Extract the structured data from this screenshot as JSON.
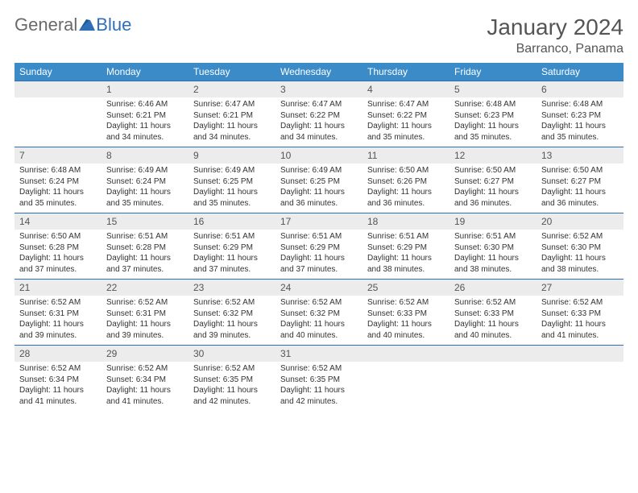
{
  "logo": {
    "text1": "General",
    "text2": "Blue"
  },
  "title": "January 2024",
  "location": "Barranco, Panama",
  "colors": {
    "header_bg": "#3b8bc9",
    "header_text": "#ffffff",
    "daynum_bg": "#ececec",
    "daynum_border": "#2e6fb7",
    "body_text": "#333333",
    "title_text": "#555555",
    "logo_gray": "#6a6a6a",
    "logo_blue": "#2e6fb7"
  },
  "weekdays": [
    "Sunday",
    "Monday",
    "Tuesday",
    "Wednesday",
    "Thursday",
    "Friday",
    "Saturday"
  ],
  "weeks": [
    [
      null,
      {
        "n": "1",
        "sr": "Sunrise: 6:46 AM",
        "ss": "Sunset: 6:21 PM",
        "d1": "Daylight: 11 hours",
        "d2": "and 34 minutes."
      },
      {
        "n": "2",
        "sr": "Sunrise: 6:47 AM",
        "ss": "Sunset: 6:21 PM",
        "d1": "Daylight: 11 hours",
        "d2": "and 34 minutes."
      },
      {
        "n": "3",
        "sr": "Sunrise: 6:47 AM",
        "ss": "Sunset: 6:22 PM",
        "d1": "Daylight: 11 hours",
        "d2": "and 34 minutes."
      },
      {
        "n": "4",
        "sr": "Sunrise: 6:47 AM",
        "ss": "Sunset: 6:22 PM",
        "d1": "Daylight: 11 hours",
        "d2": "and 35 minutes."
      },
      {
        "n": "5",
        "sr": "Sunrise: 6:48 AM",
        "ss": "Sunset: 6:23 PM",
        "d1": "Daylight: 11 hours",
        "d2": "and 35 minutes."
      },
      {
        "n": "6",
        "sr": "Sunrise: 6:48 AM",
        "ss": "Sunset: 6:23 PM",
        "d1": "Daylight: 11 hours",
        "d2": "and 35 minutes."
      }
    ],
    [
      {
        "n": "7",
        "sr": "Sunrise: 6:48 AM",
        "ss": "Sunset: 6:24 PM",
        "d1": "Daylight: 11 hours",
        "d2": "and 35 minutes."
      },
      {
        "n": "8",
        "sr": "Sunrise: 6:49 AM",
        "ss": "Sunset: 6:24 PM",
        "d1": "Daylight: 11 hours",
        "d2": "and 35 minutes."
      },
      {
        "n": "9",
        "sr": "Sunrise: 6:49 AM",
        "ss": "Sunset: 6:25 PM",
        "d1": "Daylight: 11 hours",
        "d2": "and 35 minutes."
      },
      {
        "n": "10",
        "sr": "Sunrise: 6:49 AM",
        "ss": "Sunset: 6:25 PM",
        "d1": "Daylight: 11 hours",
        "d2": "and 36 minutes."
      },
      {
        "n": "11",
        "sr": "Sunrise: 6:50 AM",
        "ss": "Sunset: 6:26 PM",
        "d1": "Daylight: 11 hours",
        "d2": "and 36 minutes."
      },
      {
        "n": "12",
        "sr": "Sunrise: 6:50 AM",
        "ss": "Sunset: 6:27 PM",
        "d1": "Daylight: 11 hours",
        "d2": "and 36 minutes."
      },
      {
        "n": "13",
        "sr": "Sunrise: 6:50 AM",
        "ss": "Sunset: 6:27 PM",
        "d1": "Daylight: 11 hours",
        "d2": "and 36 minutes."
      }
    ],
    [
      {
        "n": "14",
        "sr": "Sunrise: 6:50 AM",
        "ss": "Sunset: 6:28 PM",
        "d1": "Daylight: 11 hours",
        "d2": "and 37 minutes."
      },
      {
        "n": "15",
        "sr": "Sunrise: 6:51 AM",
        "ss": "Sunset: 6:28 PM",
        "d1": "Daylight: 11 hours",
        "d2": "and 37 minutes."
      },
      {
        "n": "16",
        "sr": "Sunrise: 6:51 AM",
        "ss": "Sunset: 6:29 PM",
        "d1": "Daylight: 11 hours",
        "d2": "and 37 minutes."
      },
      {
        "n": "17",
        "sr": "Sunrise: 6:51 AM",
        "ss": "Sunset: 6:29 PM",
        "d1": "Daylight: 11 hours",
        "d2": "and 37 minutes."
      },
      {
        "n": "18",
        "sr": "Sunrise: 6:51 AM",
        "ss": "Sunset: 6:29 PM",
        "d1": "Daylight: 11 hours",
        "d2": "and 38 minutes."
      },
      {
        "n": "19",
        "sr": "Sunrise: 6:51 AM",
        "ss": "Sunset: 6:30 PM",
        "d1": "Daylight: 11 hours",
        "d2": "and 38 minutes."
      },
      {
        "n": "20",
        "sr": "Sunrise: 6:52 AM",
        "ss": "Sunset: 6:30 PM",
        "d1": "Daylight: 11 hours",
        "d2": "and 38 minutes."
      }
    ],
    [
      {
        "n": "21",
        "sr": "Sunrise: 6:52 AM",
        "ss": "Sunset: 6:31 PM",
        "d1": "Daylight: 11 hours",
        "d2": "and 39 minutes."
      },
      {
        "n": "22",
        "sr": "Sunrise: 6:52 AM",
        "ss": "Sunset: 6:31 PM",
        "d1": "Daylight: 11 hours",
        "d2": "and 39 minutes."
      },
      {
        "n": "23",
        "sr": "Sunrise: 6:52 AM",
        "ss": "Sunset: 6:32 PM",
        "d1": "Daylight: 11 hours",
        "d2": "and 39 minutes."
      },
      {
        "n": "24",
        "sr": "Sunrise: 6:52 AM",
        "ss": "Sunset: 6:32 PM",
        "d1": "Daylight: 11 hours",
        "d2": "and 40 minutes."
      },
      {
        "n": "25",
        "sr": "Sunrise: 6:52 AM",
        "ss": "Sunset: 6:33 PM",
        "d1": "Daylight: 11 hours",
        "d2": "and 40 minutes."
      },
      {
        "n": "26",
        "sr": "Sunrise: 6:52 AM",
        "ss": "Sunset: 6:33 PM",
        "d1": "Daylight: 11 hours",
        "d2": "and 40 minutes."
      },
      {
        "n": "27",
        "sr": "Sunrise: 6:52 AM",
        "ss": "Sunset: 6:33 PM",
        "d1": "Daylight: 11 hours",
        "d2": "and 41 minutes."
      }
    ],
    [
      {
        "n": "28",
        "sr": "Sunrise: 6:52 AM",
        "ss": "Sunset: 6:34 PM",
        "d1": "Daylight: 11 hours",
        "d2": "and 41 minutes."
      },
      {
        "n": "29",
        "sr": "Sunrise: 6:52 AM",
        "ss": "Sunset: 6:34 PM",
        "d1": "Daylight: 11 hours",
        "d2": "and 41 minutes."
      },
      {
        "n": "30",
        "sr": "Sunrise: 6:52 AM",
        "ss": "Sunset: 6:35 PM",
        "d1": "Daylight: 11 hours",
        "d2": "and 42 minutes."
      },
      {
        "n": "31",
        "sr": "Sunrise: 6:52 AM",
        "ss": "Sunset: 6:35 PM",
        "d1": "Daylight: 11 hours",
        "d2": "and 42 minutes."
      },
      null,
      null,
      null
    ]
  ]
}
